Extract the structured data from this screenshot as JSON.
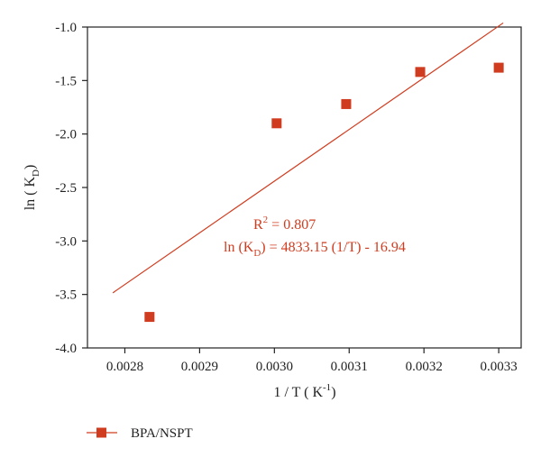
{
  "chart_data": {
    "type": "scatter",
    "xlabel": "1 / T ( K",
    "xlabel_sup": "-1",
    "xlabel_end": ")",
    "ylabel": "ln ( K",
    "ylabel_sub": "D",
    "ylabel_end": ")",
    "xlim": [
      0.00275,
      0.00333
    ],
    "ylim": [
      -4.0,
      -1.0
    ],
    "xticks": [
      "0.0028",
      "0.0029",
      "0.0030",
      "0.0031",
      "0.0032",
      "0.0033"
    ],
    "xtick_values": [
      0.0028,
      0.0029,
      0.003,
      0.0031,
      0.0032,
      0.0033
    ],
    "yticks": [
      "-1.0",
      "-1.5",
      "-2.0",
      "-2.5",
      "-3.0",
      "-3.5",
      "-4.0"
    ],
    "ytick_values": [
      -1.0,
      -1.5,
      -2.0,
      -2.5,
      -3.0,
      -3.5,
      -4.0
    ],
    "grid": false,
    "legend_position": "bottom-left",
    "series": [
      {
        "name": "BPA/NSPT",
        "color": "#d03c1f",
        "marker": "square",
        "points": [
          {
            "x": 0.002833,
            "y": -3.71
          },
          {
            "x": 0.003003,
            "y": -1.9
          },
          {
            "x": 0.003096,
            "y": -1.72
          },
          {
            "x": 0.003195,
            "y": -1.42
          },
          {
            "x": 0.0033,
            "y": -1.38
          }
        ]
      }
    ],
    "fit_line": {
      "color": "#d03c1f",
      "slope": 4833.15,
      "intercept": -16.94,
      "x_range": [
        0.002784,
        0.003306
      ]
    },
    "annotations": {
      "r2_prefix": "R",
      "r2_sup": "2",
      "r2_value": " = 0.807",
      "eq_prefix": "ln (K",
      "eq_sub": "D",
      "eq_rest": ") = 4833.15 (1/T) - 16.94",
      "color": "#d03c1f"
    }
  }
}
